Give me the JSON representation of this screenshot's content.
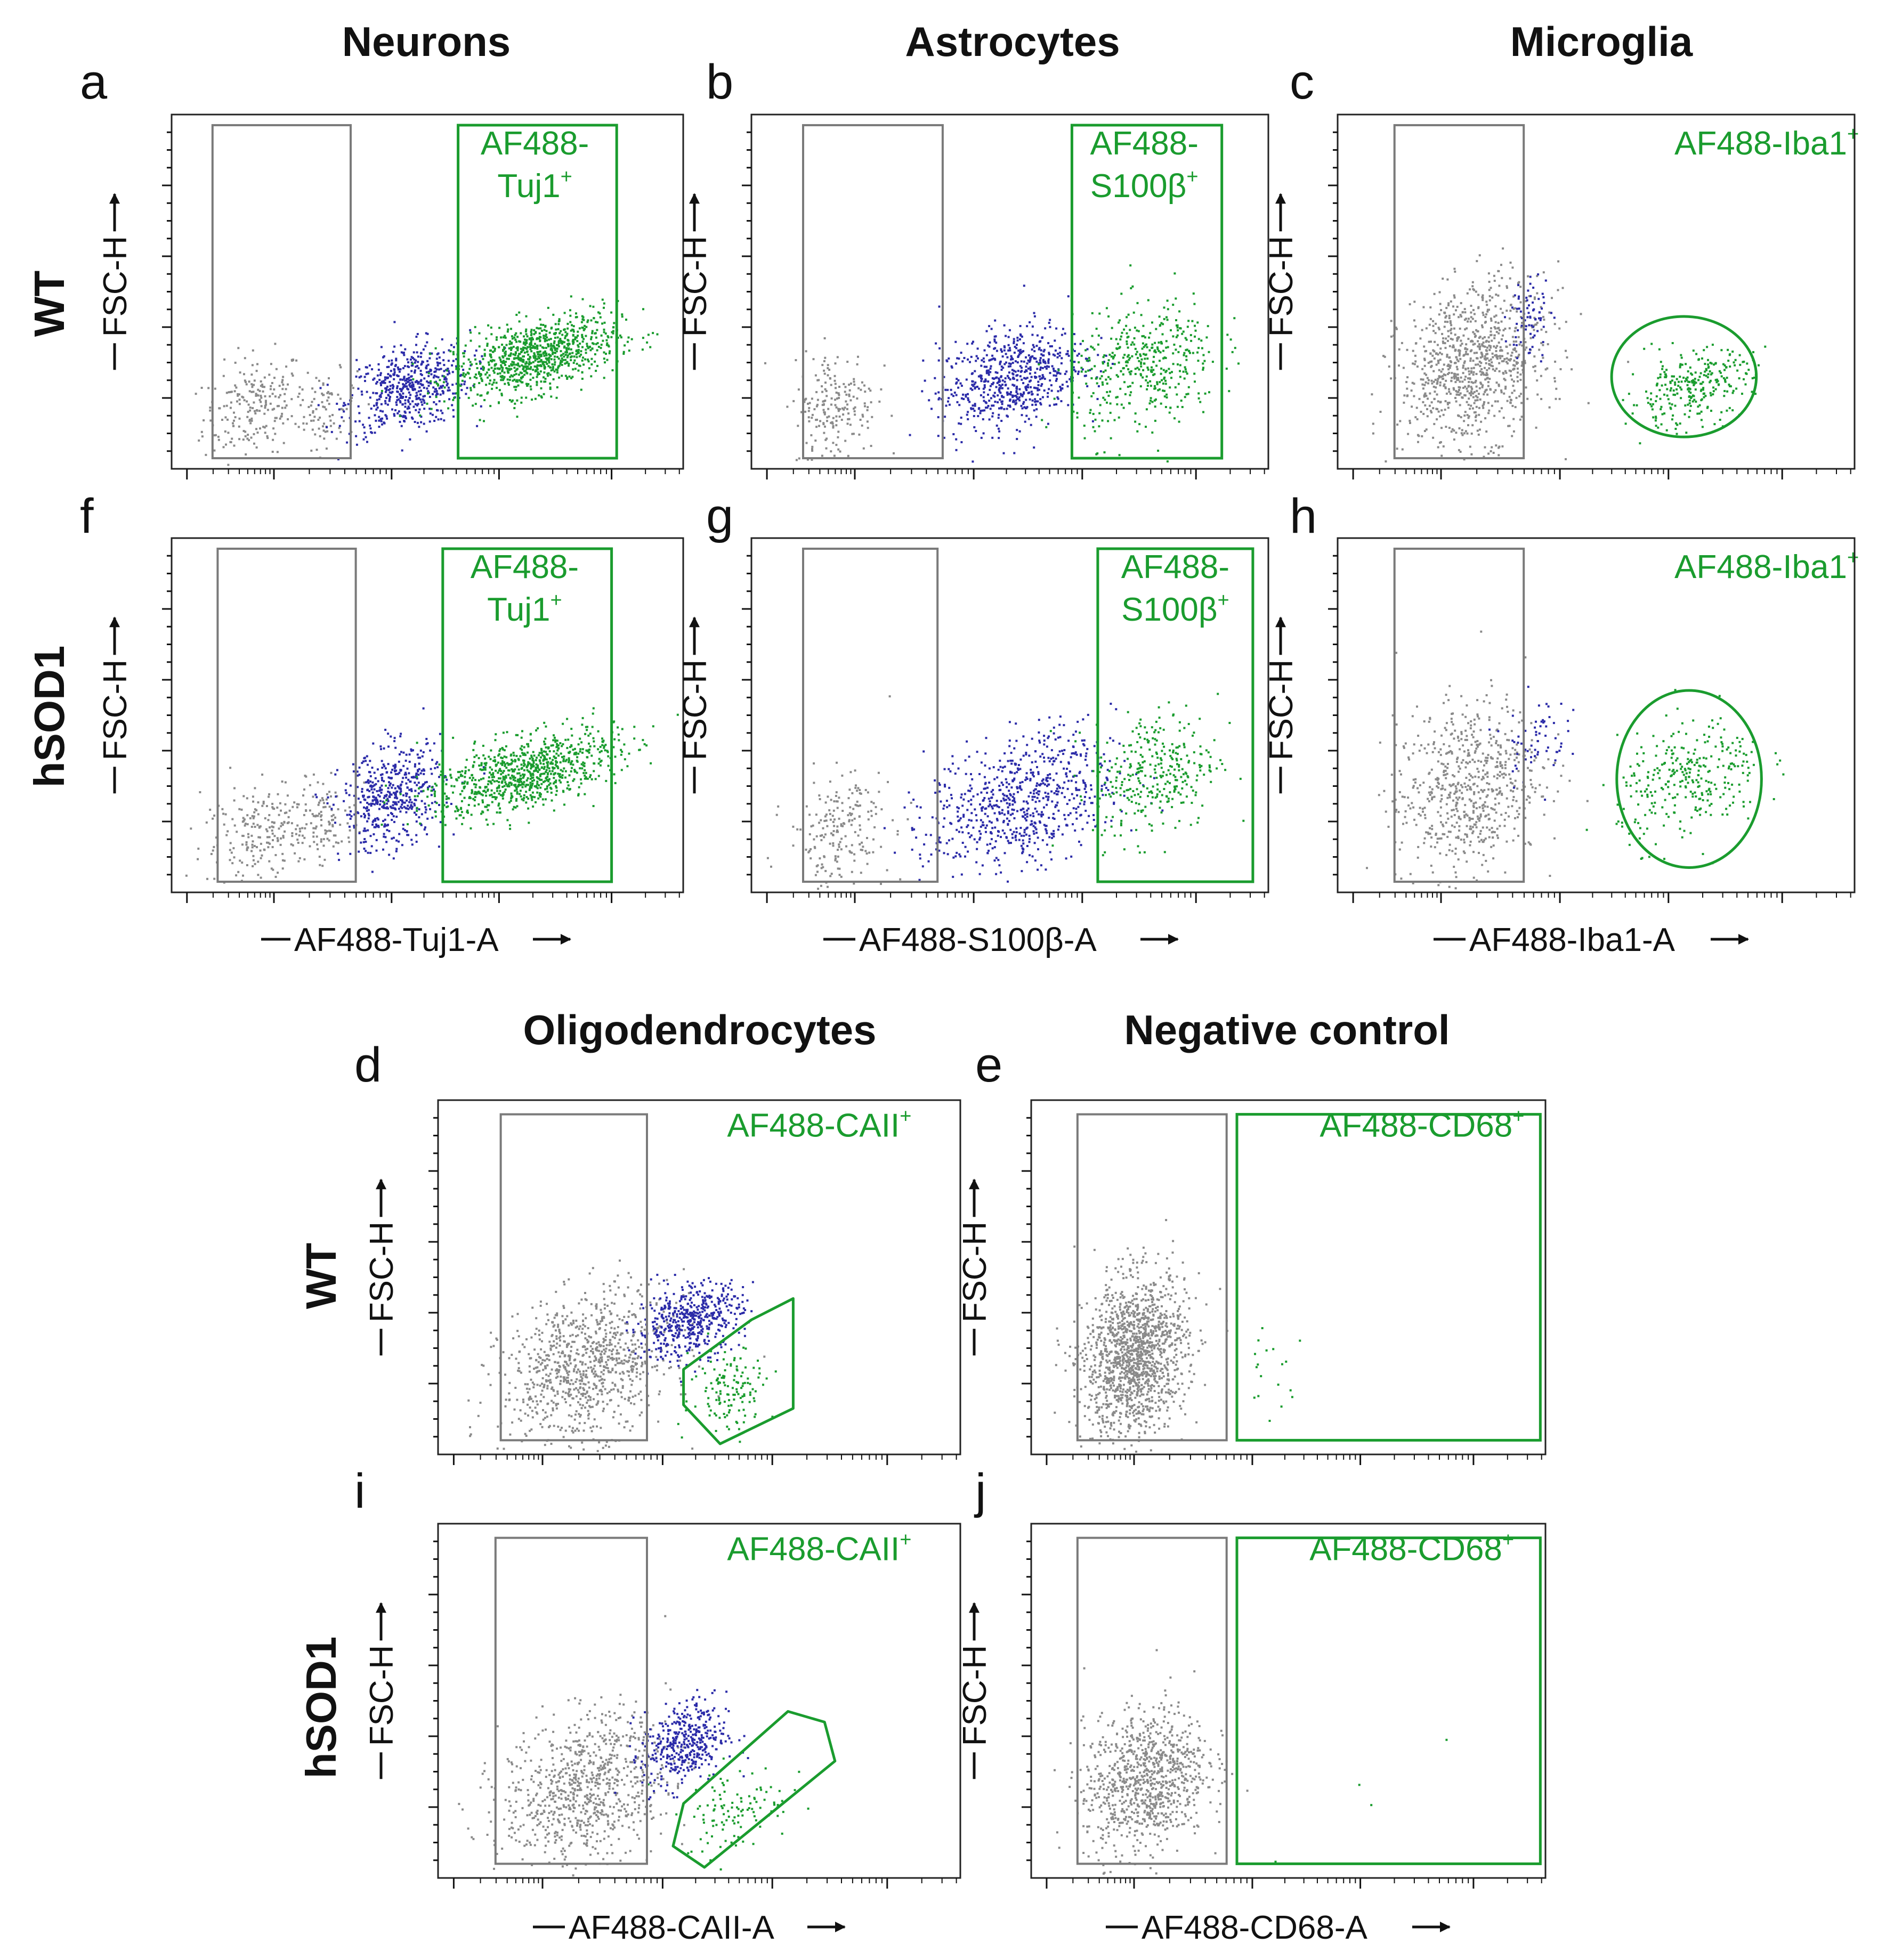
{
  "colors": {
    "negative": "#8a8a8a",
    "intermediate": "#2b2ba8",
    "positive": "#1a9c2e",
    "frame": "#222222",
    "gate_gray": "#7a7a7a",
    "gate_green": "#1a9c2e"
  },
  "column_titles": {
    "neurons": "Neurons",
    "astrocytes": "Astrocytes",
    "microglia": "Microglia",
    "oligodendrocytes": "Oligodendrocytes",
    "negative_control": "Negative control"
  },
  "row_labels": {
    "top_wt": "WT",
    "top_hsod1": "hSOD1",
    "bottom_wt": "WT",
    "bottom_hsod1": "hSOD1"
  },
  "y_axis_label": "FSC-H",
  "x_axis_labels": {
    "tuj1": "AF488-Tuj1-A",
    "s100b": "AF488-S100β-A",
    "iba1": "AF488-Iba1-A",
    "caii": "AF488-CAII-A",
    "cd68": "AF488-CD68-A"
  },
  "chart_data": [
    {
      "id": "a",
      "panel_letter": "a",
      "type": "scatter",
      "genotype": "WT",
      "cell_type": "Neurons",
      "gate_label_main": "AF488-",
      "gate_label_marker": "Tuj1",
      "gate_label_sup": "+",
      "xlabel": "AF488-Tuj1-A",
      "ylabel": "FSC-H",
      "x_scale": "log",
      "xlim": [
        0,
        1
      ],
      "ylim": [
        0,
        1
      ],
      "negative_gate": {
        "x": [
          0.08,
          0.35
        ],
        "y": [
          0.03,
          0.97
        ]
      },
      "positive_gate": {
        "shape": "rectangle",
        "x": [
          0.56,
          0.87
        ],
        "y": [
          0.03,
          0.97
        ]
      },
      "populations": [
        {
          "name": "negative",
          "color": "gray",
          "center": [
            0.16,
            0.18
          ],
          "spread": [
            0.05,
            0.07
          ],
          "count": 220
        },
        {
          "name": "negative",
          "color": "gray",
          "center": [
            0.3,
            0.17
          ],
          "spread": [
            0.03,
            0.05
          ],
          "count": 80
        },
        {
          "name": "intermediate",
          "color": "blue",
          "center": [
            0.46,
            0.23
          ],
          "spread": [
            0.06,
            0.06
          ],
          "count": 520
        },
        {
          "name": "positive",
          "color": "green",
          "center": [
            0.71,
            0.32
          ],
          "spread": [
            0.08,
            0.05
          ],
          "count": 900
        }
      ]
    },
    {
      "id": "b",
      "panel_letter": "b",
      "type": "scatter",
      "genotype": "WT",
      "cell_type": "Astrocytes",
      "gate_label_main": "AF488-",
      "gate_label_marker": "S100β",
      "gate_label_sup": "+",
      "xlabel": "AF488-S100β-A",
      "ylabel": "FSC-H",
      "x_scale": "log",
      "xlim": [
        0,
        1
      ],
      "ylim": [
        0,
        1
      ],
      "negative_gate": {
        "x": [
          0.1,
          0.37
        ],
        "y": [
          0.03,
          0.97
        ]
      },
      "positive_gate": {
        "shape": "rectangle",
        "x": [
          0.62,
          0.91
        ],
        "y": [
          0.03,
          0.97
        ]
      },
      "populations": [
        {
          "name": "negative",
          "color": "gray",
          "center": [
            0.16,
            0.18
          ],
          "spread": [
            0.04,
            0.08
          ],
          "count": 200
        },
        {
          "name": "intermediate",
          "color": "blue",
          "center": [
            0.5,
            0.26
          ],
          "spread": [
            0.07,
            0.07
          ],
          "count": 650
        },
        {
          "name": "positive",
          "color": "green",
          "center": [
            0.76,
            0.29
          ],
          "spread": [
            0.07,
            0.09
          ],
          "count": 420
        }
      ]
    },
    {
      "id": "c",
      "panel_letter": "c",
      "type": "scatter",
      "genotype": "WT",
      "cell_type": "Microglia",
      "gate_label_main": "AF488-",
      "gate_label_marker": "Iba1",
      "gate_label_sup": "+",
      "xlabel": "AF488-Iba1-A",
      "ylabel": "FSC-H",
      "x_scale": "log",
      "xlim": [
        0,
        1
      ],
      "ylim": [
        0,
        1
      ],
      "negative_gate": {
        "x": [
          0.11,
          0.36
        ],
        "y": [
          0.03,
          0.97
        ]
      },
      "positive_gate": {
        "shape": "ellipse",
        "center": [
          0.67,
          0.26
        ],
        "radius": [
          0.14,
          0.17
        ]
      },
      "populations": [
        {
          "name": "negative",
          "color": "gray",
          "center": [
            0.26,
            0.3
          ],
          "spread": [
            0.07,
            0.11
          ],
          "count": 900
        },
        {
          "name": "intermediate",
          "color": "blue",
          "center": [
            0.37,
            0.43
          ],
          "spread": [
            0.02,
            0.06
          ],
          "count": 70
        },
        {
          "name": "positive",
          "color": "green",
          "center": [
            0.68,
            0.23
          ],
          "spread": [
            0.06,
            0.05
          ],
          "count": 280
        }
      ]
    },
    {
      "id": "f",
      "panel_letter": "f",
      "type": "scatter",
      "genotype": "hSOD1",
      "cell_type": "Neurons",
      "gate_label_main": "AF488-",
      "gate_label_marker": "Tuj1",
      "gate_label_sup": "+",
      "xlabel": "AF488-Tuj1-A",
      "ylabel": "FSC-H",
      "x_scale": "log",
      "xlim": [
        0,
        1
      ],
      "ylim": [
        0,
        1
      ],
      "negative_gate": {
        "x": [
          0.09,
          0.36
        ],
        "y": [
          0.03,
          0.97
        ]
      },
      "positive_gate": {
        "shape": "rectangle",
        "x": [
          0.53,
          0.86
        ],
        "y": [
          0.03,
          0.97
        ]
      },
      "populations": [
        {
          "name": "negative",
          "color": "gray",
          "center": [
            0.18,
            0.18
          ],
          "spread": [
            0.06,
            0.07
          ],
          "count": 220
        },
        {
          "name": "negative",
          "color": "gray",
          "center": [
            0.3,
            0.2
          ],
          "spread": [
            0.03,
            0.05
          ],
          "count": 90
        },
        {
          "name": "intermediate",
          "color": "blue",
          "center": [
            0.43,
            0.27
          ],
          "spread": [
            0.05,
            0.07
          ],
          "count": 480
        },
        {
          "name": "positive",
          "color": "green",
          "center": [
            0.69,
            0.34
          ],
          "spread": [
            0.09,
            0.05
          ],
          "count": 850
        }
      ]
    },
    {
      "id": "g",
      "panel_letter": "g",
      "type": "scatter",
      "genotype": "hSOD1",
      "cell_type": "Astrocytes",
      "gate_label_main": "AF488-",
      "gate_label_marker": "S100β",
      "gate_label_sup": "+",
      "xlabel": "AF488-S100β-A",
      "ylabel": "FSC-H",
      "x_scale": "log",
      "xlim": [
        0,
        1
      ],
      "ylim": [
        0,
        1
      ],
      "negative_gate": {
        "x": [
          0.1,
          0.36
        ],
        "y": [
          0.03,
          0.97
        ]
      },
      "positive_gate": {
        "shape": "rectangle",
        "x": [
          0.67,
          0.97
        ],
        "y": [
          0.03,
          0.97
        ]
      },
      "populations": [
        {
          "name": "negative",
          "color": "gray",
          "center": [
            0.17,
            0.18
          ],
          "spread": [
            0.05,
            0.08
          ],
          "count": 200
        },
        {
          "name": "intermediate",
          "color": "blue",
          "center": [
            0.52,
            0.26
          ],
          "spread": [
            0.09,
            0.09
          ],
          "count": 700
        },
        {
          "name": "positive",
          "color": "green",
          "center": [
            0.78,
            0.34
          ],
          "spread": [
            0.06,
            0.09
          ],
          "count": 320
        }
      ]
    },
    {
      "id": "h",
      "panel_letter": "h",
      "type": "scatter",
      "genotype": "hSOD1",
      "cell_type": "Microglia",
      "gate_label_main": "AF488-",
      "gate_label_marker": "Iba1",
      "gate_label_sup": "+",
      "xlabel": "AF488-Iba1-A",
      "ylabel": "FSC-H",
      "x_scale": "log",
      "xlim": [
        0,
        1
      ],
      "ylim": [
        0,
        1
      ],
      "negative_gate": {
        "x": [
          0.11,
          0.36
        ],
        "y": [
          0.03,
          0.97
        ]
      },
      "positive_gate": {
        "shape": "ellipse",
        "center": [
          0.68,
          0.32
        ],
        "radius": [
          0.14,
          0.25
        ]
      },
      "populations": [
        {
          "name": "negative",
          "color": "gray",
          "center": [
            0.25,
            0.3
          ],
          "spread": [
            0.07,
            0.12
          ],
          "count": 650
        },
        {
          "name": "intermediate",
          "color": "blue",
          "center": [
            0.38,
            0.44
          ],
          "spread": [
            0.03,
            0.06
          ],
          "count": 60
        },
        {
          "name": "positive",
          "color": "green",
          "center": [
            0.68,
            0.32
          ],
          "spread": [
            0.07,
            0.08
          ],
          "count": 300
        }
      ]
    },
    {
      "id": "d",
      "panel_letter": "d",
      "type": "scatter",
      "genotype": "WT",
      "cell_type": "Oligodendrocytes",
      "gate_label_main": "AF488-",
      "gate_label_marker": "CAII",
      "gate_label_sup": "+",
      "xlabel": "AF488-CAII-A",
      "ylabel": "FSC-H",
      "x_scale": "log",
      "xlim": [
        0,
        1
      ],
      "ylim": [
        0,
        1
      ],
      "negative_gate": {
        "x": [
          0.12,
          0.4
        ],
        "y": [
          0.04,
          0.96
        ]
      },
      "positive_gate": {
        "shape": "polygon",
        "points": [
          [
            0.47,
            0.14
          ],
          [
            0.54,
            0.03
          ],
          [
            0.68,
            0.13
          ],
          [
            0.68,
            0.44
          ],
          [
            0.6,
            0.38
          ],
          [
            0.47,
            0.24
          ]
        ]
      },
      "populations": [
        {
          "name": "negative",
          "color": "gray",
          "center": [
            0.28,
            0.25
          ],
          "spread": [
            0.08,
            0.1
          ],
          "count": 900
        },
        {
          "name": "intermediate",
          "color": "blue",
          "center": [
            0.48,
            0.38
          ],
          "spread": [
            0.05,
            0.05
          ],
          "count": 500
        },
        {
          "name": "positive",
          "color": "green",
          "center": [
            0.56,
            0.19
          ],
          "spread": [
            0.04,
            0.06
          ],
          "count": 130
        }
      ]
    },
    {
      "id": "e",
      "panel_letter": "e",
      "type": "scatter",
      "genotype": "WT",
      "cell_type": "Negative control",
      "gate_label_main": "AF488-",
      "gate_label_marker": "CD68",
      "gate_label_sup": "+",
      "xlabel": "AF488-CD68-A",
      "ylabel": "FSC-H",
      "x_scale": "log",
      "xlim": [
        0,
        1
      ],
      "ylim": [
        0,
        1
      ],
      "negative_gate": {
        "x": [
          0.09,
          0.38
        ],
        "y": [
          0.04,
          0.96
        ]
      },
      "positive_gate": {
        "shape": "rectangle",
        "x": [
          0.4,
          0.99
        ],
        "y": [
          0.04,
          0.96
        ]
      },
      "populations": [
        {
          "name": "negative",
          "color": "gray",
          "center": [
            0.2,
            0.28
          ],
          "spread": [
            0.05,
            0.11
          ],
          "count": 1400
        },
        {
          "name": "positive",
          "color": "green",
          "center": [
            0.46,
            0.24
          ],
          "spread": [
            0.03,
            0.07
          ],
          "count": 18
        }
      ]
    },
    {
      "id": "i",
      "panel_letter": "i",
      "type": "scatter",
      "genotype": "hSOD1",
      "cell_type": "Oligodendrocytes",
      "gate_label_main": "AF488-",
      "gate_label_marker": "CAII",
      "gate_label_sup": "+",
      "xlabel": "AF488-CAII-A",
      "ylabel": "FSC-H",
      "x_scale": "log",
      "xlim": [
        0,
        1
      ],
      "ylim": [
        0,
        1
      ],
      "negative_gate": {
        "x": [
          0.11,
          0.4
        ],
        "y": [
          0.04,
          0.96
        ]
      },
      "positive_gate": {
        "shape": "polygon",
        "points": [
          [
            0.45,
            0.09
          ],
          [
            0.47,
            0.21
          ],
          [
            0.67,
            0.47
          ],
          [
            0.74,
            0.44
          ],
          [
            0.76,
            0.33
          ],
          [
            0.51,
            0.03
          ]
        ]
      },
      "populations": [
        {
          "name": "negative",
          "color": "gray",
          "center": [
            0.28,
            0.26
          ],
          "spread": [
            0.08,
            0.1
          ],
          "count": 800
        },
        {
          "name": "intermediate",
          "color": "blue",
          "center": [
            0.47,
            0.38
          ],
          "spread": [
            0.04,
            0.06
          ],
          "count": 400
        },
        {
          "name": "positive",
          "color": "green",
          "center": [
            0.57,
            0.2
          ],
          "spread": [
            0.05,
            0.06
          ],
          "count": 110
        }
      ]
    },
    {
      "id": "j",
      "panel_letter": "j",
      "type": "scatter",
      "genotype": "hSOD1",
      "cell_type": "Negative control",
      "gate_label_main": "AF488-",
      "gate_label_marker": "CD68",
      "gate_label_sup": "+",
      "xlabel": "AF488-CD68-A",
      "ylabel": "FSC-H",
      "x_scale": "log",
      "xlim": [
        0,
        1
      ],
      "ylim": [
        0,
        1
      ],
      "negative_gate": {
        "x": [
          0.09,
          0.38
        ],
        "y": [
          0.04,
          0.96
        ]
      },
      "positive_gate": {
        "shape": "rectangle",
        "x": [
          0.4,
          0.99
        ],
        "y": [
          0.04,
          0.96
        ]
      },
      "populations": [
        {
          "name": "negative",
          "color": "gray",
          "center": [
            0.22,
            0.28
          ],
          "spread": [
            0.06,
            0.1
          ],
          "count": 900
        },
        {
          "name": "positive",
          "color": "green",
          "center": [
            0.7,
            0.24
          ],
          "spread": [
            0.15,
            0.12
          ],
          "count": 4
        }
      ]
    }
  ]
}
